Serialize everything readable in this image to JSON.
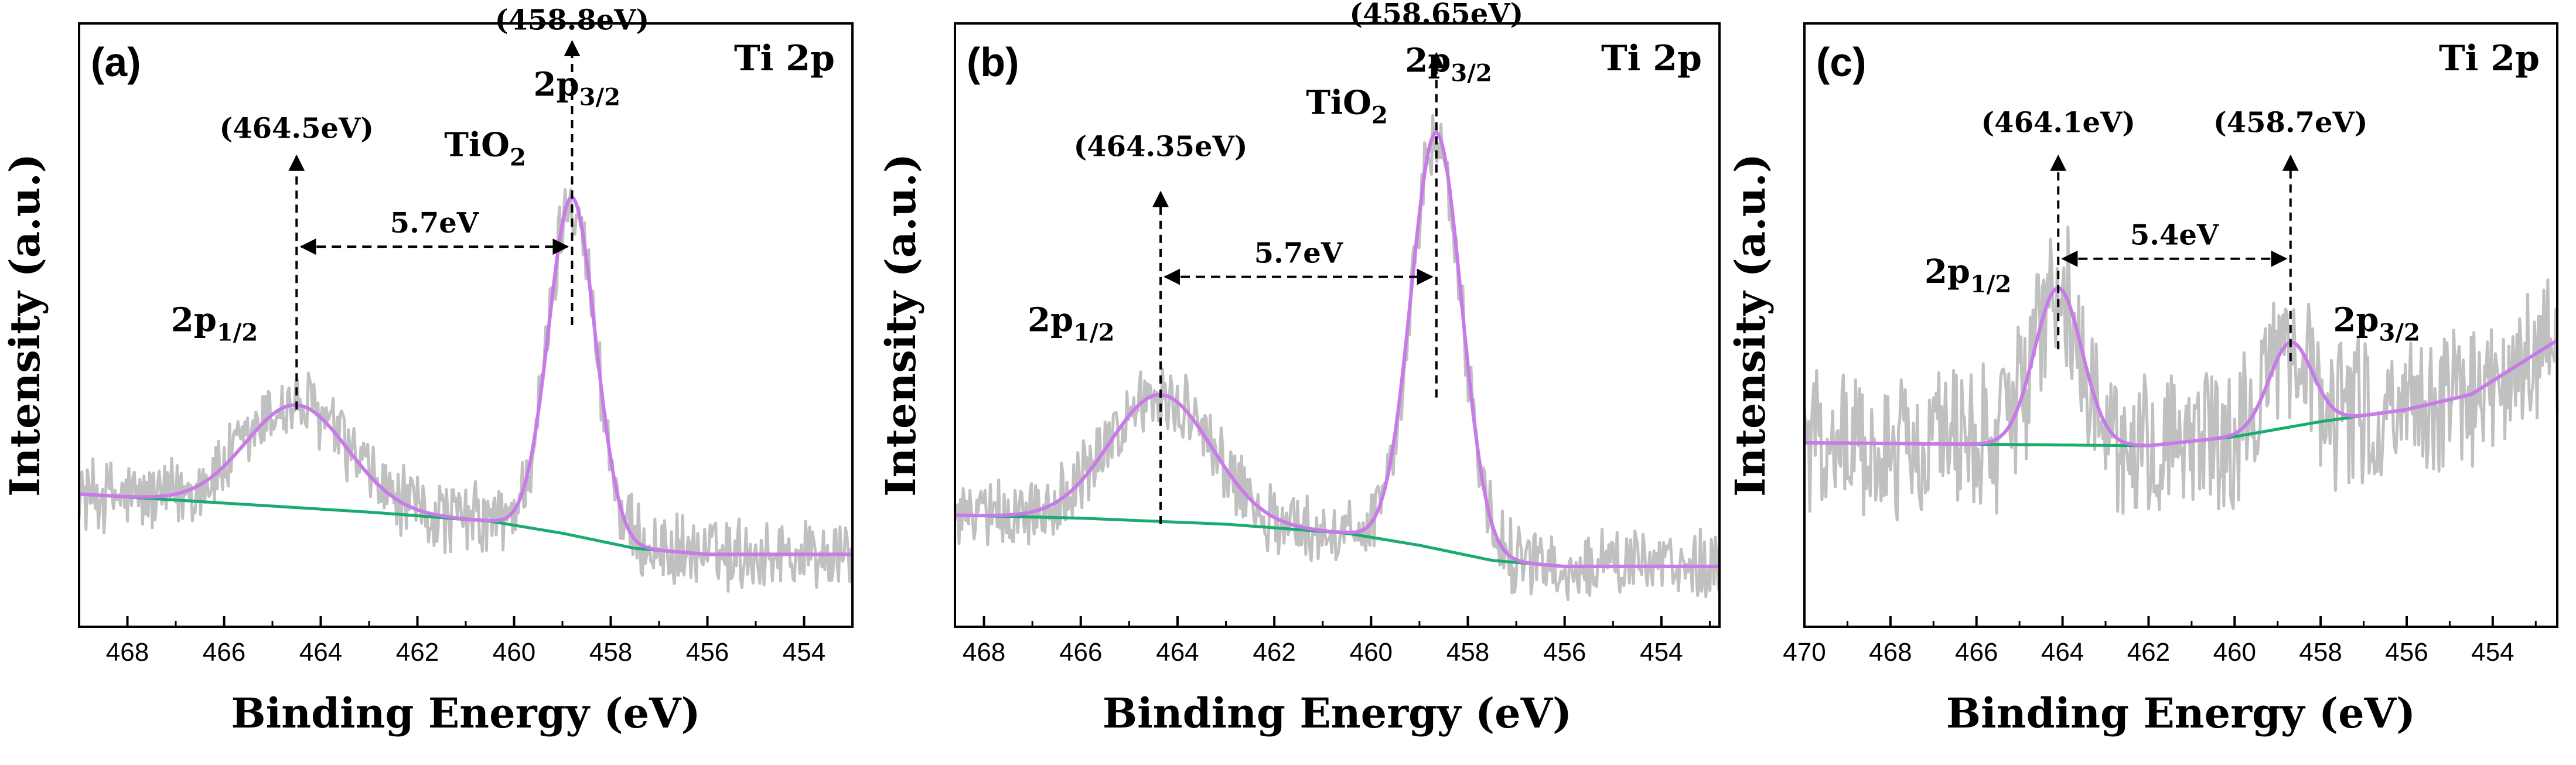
{
  "colors": {
    "raw": "#c0c0c0",
    "fit": "#c77ae8",
    "background": "#1aab6e",
    "axis": "#000000",
    "arrow": "#000000"
  },
  "chart_data": [
    {
      "type": "line",
      "panel_label": "(a)",
      "element_label": "Ti 2p",
      "xlabel": "Binding Energy (eV)",
      "ylabel": "Intensity (a.u.)",
      "xlim": [
        469,
        453
      ],
      "ylim": [
        0,
        1
      ],
      "x_reversed": true,
      "grid": false,
      "x_ticks": [
        468,
        466,
        464,
        462,
        460,
        458,
        456,
        454
      ],
      "peaks": [
        {
          "position": 464.5,
          "amplitude": 0.17,
          "sigma": 1.05
        },
        {
          "position": 458.8,
          "amplitude": 0.56,
          "sigma": 0.48
        }
      ],
      "background_points": [
        [
          469,
          0.22
        ],
        [
          466,
          0.205
        ],
        [
          463,
          0.19
        ],
        [
          460.5,
          0.175
        ],
        [
          459,
          0.155
        ],
        [
          457.5,
          0.13
        ],
        [
          456,
          0.12
        ],
        [
          453,
          0.12
        ]
      ],
      "raw_noise": 0.07,
      "annotations": [
        {
          "text": "(464.5eV)",
          "x": 464.5,
          "y": 0.81
        },
        {
          "text": "(458.8eV)",
          "x": 458.8,
          "y": 0.99
        }
      ],
      "peak_labels": [
        {
          "main": "2p",
          "sub": "1/2",
          "x": 466.2,
          "y": 0.49
        },
        {
          "main": "2p",
          "sub": "3/2",
          "x": 458.7,
          "y": 0.88
        },
        {
          "main": "TiO",
          "sub": "2",
          "x": 460.6,
          "y": 0.78
        }
      ],
      "separation": {
        "text": "5.7eV",
        "x1": 464.5,
        "x2": 458.8,
        "y": 0.63
      },
      "drop_lines": [
        {
          "x": 464.5,
          "from": 0.36,
          "to": 0.78
        },
        {
          "x": 458.8,
          "from": 0.5,
          "to": 0.97
        }
      ]
    },
    {
      "type": "line",
      "panel_label": "(b)",
      "element_label": "Ti 2p",
      "xlabel": "Binding Energy (eV)",
      "ylabel": "Intensity (a.u.)",
      "xlim": [
        468.6,
        452.8
      ],
      "ylim": [
        0,
        1
      ],
      "x_reversed": true,
      "grid": false,
      "x_ticks": [
        468,
        466,
        464,
        462,
        460,
        458,
        456,
        454
      ],
      "peaks": [
        {
          "position": 464.35,
          "amplitude": 0.21,
          "sigma": 1.05
        },
        {
          "position": 458.65,
          "amplitude": 0.69,
          "sigma": 0.52
        }
      ],
      "background_points": [
        [
          468.6,
          0.185
        ],
        [
          466,
          0.18
        ],
        [
          463,
          0.17
        ],
        [
          460.5,
          0.155
        ],
        [
          459,
          0.135
        ],
        [
          457.5,
          0.11
        ],
        [
          456,
          0.1
        ],
        [
          452.8,
          0.1
        ]
      ],
      "raw_noise": 0.065,
      "annotations": [
        {
          "text": "(464.35eV)",
          "x": 464.35,
          "y": 0.78
        },
        {
          "text": "(458.65eV)",
          "x": 458.65,
          "y": 1.0
        }
      ],
      "peak_labels": [
        {
          "main": "2p",
          "sub": "1/2",
          "x": 466.2,
          "y": 0.49
        },
        {
          "main": "2p",
          "sub": "3/2",
          "x": 458.4,
          "y": 0.92
        },
        {
          "main": "TiO",
          "sub": "2",
          "x": 460.5,
          "y": 0.85
        }
      ],
      "separation": {
        "text": "5.7eV",
        "x1": 464.35,
        "x2": 458.65,
        "y": 0.58
      },
      "drop_lines": [
        {
          "x": 464.35,
          "from": 0.17,
          "to": 0.72
        },
        {
          "x": 458.65,
          "from": 0.38,
          "to": 0.95
        }
      ]
    },
    {
      "type": "line",
      "panel_label": "(c)",
      "element_label": "Ti 2p",
      "xlabel": "Binding Energy (eV)",
      "ylabel": "Intensity (a.u.)",
      "xlim": [
        470,
        452.5
      ],
      "ylim": [
        0,
        1
      ],
      "x_reversed": true,
      "grid": false,
      "x_ticks": [
        470,
        468,
        466,
        464,
        462,
        460,
        458,
        456,
        454
      ],
      "peaks": [
        {
          "position": 464.1,
          "amplitude": 0.26,
          "sigma": 0.55
        },
        {
          "position": 458.7,
          "amplitude": 0.14,
          "sigma": 0.5
        }
      ],
      "background_points": [
        [
          470,
          0.305
        ],
        [
          462,
          0.3
        ],
        [
          460,
          0.315
        ],
        [
          458,
          0.34
        ],
        [
          456,
          0.36
        ],
        [
          454.5,
          0.385
        ],
        [
          453.5,
          0.43
        ],
        [
          452.5,
          0.475
        ]
      ],
      "raw_noise": 0.14,
      "annotations": [
        {
          "text": "(464.1eV)",
          "x": 464.1,
          "y": 0.82
        },
        {
          "text": "(458.7eV)",
          "x": 458.7,
          "y": 0.82
        }
      ],
      "peak_labels": [
        {
          "main": "2p",
          "sub": "1/2",
          "x": 466.2,
          "y": 0.57
        },
        {
          "main": "2p",
          "sub": "3/2",
          "x": 456.7,
          "y": 0.49
        }
      ],
      "separation": {
        "text": "5.4eV",
        "x1": 464.1,
        "x2": 458.7,
        "y": 0.61
      },
      "drop_lines": [
        {
          "x": 464.1,
          "from": 0.46,
          "to": 0.78
        },
        {
          "x": 458.7,
          "from": 0.44,
          "to": 0.78
        }
      ]
    }
  ]
}
